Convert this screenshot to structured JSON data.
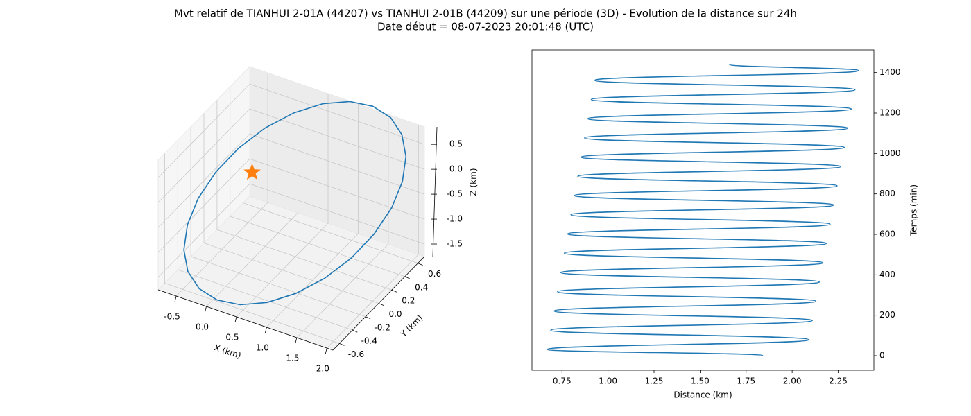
{
  "title": "Mvt relatif de TIANHUI 2-01A (44207) vs TIANHUI 2-01B (44209) sur une période (3D) - Evolution de la distance sur 24h",
  "subtitle": "Date début = 08-07-2023 20:01:48 (UTC)",
  "chart_data": [
    {
      "type": "line3d",
      "xlabel": "X (km)",
      "ylabel": "Y (km)",
      "zlabel": "Z (km)",
      "color": "#1f77b4",
      "x": [
        0.576,
        0.916,
        1.242,
        1.531,
        1.764,
        1.926,
        2.005,
        1.996,
        1.898,
        1.721,
        1.474,
        1.174,
        0.844,
        0.504,
        0.178,
        -0.111,
        -0.344,
        -0.506,
        -0.585,
        -0.576,
        -0.478,
        -0.301,
        -0.054,
        0.246,
        0.576
      ],
      "y": [
        0.55,
        0.648,
        0.701,
        0.707,
        0.665,
        0.577,
        0.45,
        0.293,
        0.115,
        -0.071,
        -0.251,
        -0.414,
        -0.55,
        -0.648,
        -0.701,
        -0.707,
        -0.665,
        -0.577,
        -0.45,
        -0.293,
        -0.115,
        0.071,
        0.251,
        0.414,
        0.55
      ],
      "z": [
        0.88,
        0.935,
        0.904,
        0.79,
        0.6,
        0.348,
        0.05,
        -0.274,
        -0.6,
        -0.906,
        -1.174,
        -1.383,
        -1.52,
        -1.575,
        -1.544,
        -1.43,
        -1.24,
        -0.988,
        -0.69,
        -0.366,
        -0.04,
        0.266,
        0.534,
        0.743,
        0.88
      ],
      "marker": {
        "x": 0,
        "y": 0,
        "z": 0,
        "color": "#ff7f0e"
      },
      "xlim": [
        -0.8,
        2.1
      ],
      "ylim": [
        -0.7,
        0.7
      ],
      "zlim": [
        -1.75,
        0.85
      ],
      "xticks": [
        -0.5,
        {
          "value": 0,
          "label": "0.0"
        },
        0.5,
        {
          "value": 1,
          "label": "1.0"
        },
        1.5,
        {
          "value": 2,
          "label": "2.0"
        }
      ],
      "yticks": [
        -0.6,
        -0.4,
        -0.2,
        {
          "value": 0,
          "label": "0.0"
        },
        0.2,
        0.4,
        0.6
      ],
      "zticks": [
        -1.5,
        {
          "value": -1,
          "label": "-1.0"
        },
        -0.5,
        {
          "value": 0,
          "label": "0.0"
        },
        0.5
      ],
      "grid": true
    },
    {
      "type": "line",
      "xlabel": "Distance (km)",
      "ylabel": "Temps (min)",
      "color": "#1f77b4",
      "x": [
        1.84,
        0.671,
        2.09,
        0.689,
        2.109,
        0.708,
        2.129,
        0.726,
        2.148,
        0.744,
        2.167,
        0.763,
        2.186,
        0.781,
        2.206,
        0.799,
        2.225,
        0.818,
        2.244,
        0.836,
        2.264,
        0.854,
        2.283,
        0.873,
        2.302,
        0.891,
        2.321,
        0.909,
        2.341,
        0.928,
        2.36,
        1.66
      ],
      "y": [
        0,
        31,
        79,
        126,
        174,
        221,
        269,
        316,
        364,
        411,
        459,
        507,
        555,
        602,
        650,
        697,
        745,
        792,
        840,
        887,
        935,
        982,
        1030,
        1077,
        1125,
        1172,
        1220,
        1267,
        1315,
        1362,
        1410,
        1440
      ],
      "xlim": [
        0.587,
        2.444
      ],
      "ylim": [
        -72,
        1512
      ],
      "xticks": [
        0.75,
        {
          "value": 1,
          "label": "1.00"
        },
        1.25,
        {
          "value": 1.5,
          "label": "1.50"
        },
        1.75,
        {
          "value": 2,
          "label": "2.00"
        },
        2.25
      ],
      "yticks": [
        0,
        200,
        400,
        600,
        800,
        1000,
        1200,
        1400
      ],
      "yaxis_side": "right"
    }
  ]
}
